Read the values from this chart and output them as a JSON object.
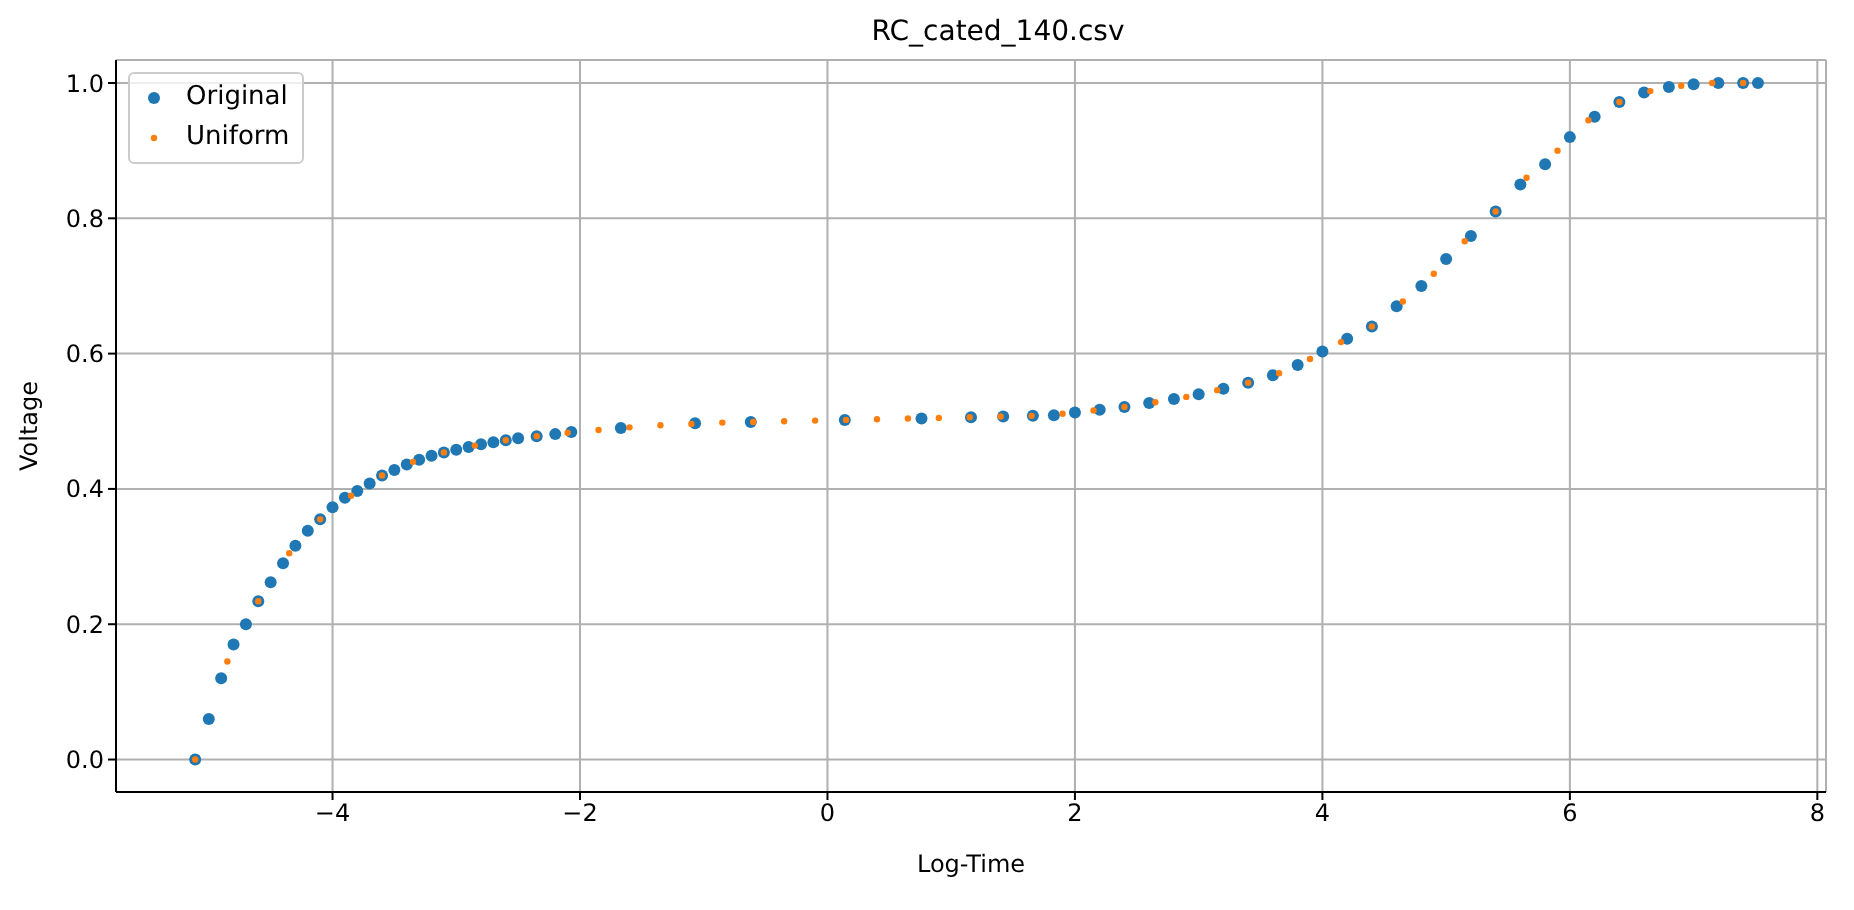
{
  "chart_data": {
    "type": "scatter",
    "title": "RC_cated_140.csv",
    "xlabel": "Log-Time",
    "ylabel": "Voltage",
    "xlim": [
      -5.75,
      8.07
    ],
    "ylim": [
      -0.048,
      1.034
    ],
    "xticks": [
      {
        "value": -4,
        "label": "−4"
      },
      {
        "value": -2,
        "label": "−2"
      },
      0,
      2,
      4,
      6,
      8
    ],
    "yticks": [
      {
        "value": 0,
        "label": "0.0"
      },
      {
        "value": 0.2,
        "label": "0.2"
      },
      {
        "value": 0.4,
        "label": "0.4"
      },
      {
        "value": 0.6,
        "label": "0.6"
      },
      {
        "value": 0.8,
        "label": "0.8"
      },
      {
        "value": 1,
        "label": "1.0"
      }
    ],
    "grid": true,
    "legend": "top left",
    "marker": "circle",
    "series": [
      {
        "name": "Original",
        "color": "#1f77b4",
        "x": [
          -5.11,
          -5.0,
          -4.9,
          -4.8,
          -4.7,
          -4.6,
          -4.5,
          -4.4,
          -4.3,
          -4.2,
          -4.1,
          -4.0,
          -3.9,
          -3.8,
          -3.7,
          -3.6,
          -3.5,
          -3.4,
          -3.3,
          -3.2,
          -3.1,
          -3.0,
          -2.9,
          -2.8,
          -2.7,
          -2.6,
          -2.5,
          -2.35,
          -2.2,
          -2.07,
          -1.67,
          -1.07,
          -0.62,
          0.14,
          0.76,
          1.16,
          1.42,
          1.66,
          1.83,
          2.0,
          2.2,
          2.4,
          2.6,
          2.8,
          3.0,
          3.2,
          3.4,
          3.6,
          3.8,
          4.0,
          4.2,
          4.4,
          4.6,
          4.8,
          5.0,
          5.2,
          5.4,
          5.6,
          5.8,
          6.0,
          6.2,
          6.4,
          6.6,
          6.8,
          7.0,
          7.2,
          7.4,
          7.52
        ],
        "values": [
          0,
          0.06,
          0.12,
          0.17,
          0.2,
          0.234,
          0.262,
          0.29,
          0.316,
          0.338,
          0.355,
          0.373,
          0.387,
          0.397,
          0.408,
          0.42,
          0.428,
          0.436,
          0.443,
          0.449,
          0.454,
          0.458,
          0.462,
          0.466,
          0.469,
          0.472,
          0.475,
          0.478,
          0.481,
          0.484,
          0.49,
          0.497,
          0.499,
          0.502,
          0.504,
          0.506,
          0.507,
          0.508,
          0.509,
          0.513,
          0.517,
          0.521,
          0.527,
          0.533,
          0.54,
          0.548,
          0.557,
          0.568,
          0.583,
          0.603,
          0.622,
          0.64,
          0.67,
          0.7,
          0.74,
          0.774,
          0.81,
          0.85,
          0.88,
          0.92,
          0.95,
          0.972,
          0.986,
          0.994,
          0.998,
          1.0,
          1.0,
          1.0
        ]
      },
      {
        "name": "Uniform",
        "color": "#ff7f0e",
        "x": [
          -5.11,
          -4.85,
          -4.6,
          -4.35,
          -4.1,
          -3.85,
          -3.6,
          -3.35,
          -3.1,
          -2.85,
          -2.6,
          -2.35,
          -2.1,
          -1.85,
          -1.6,
          -1.35,
          -1.1,
          -0.85,
          -0.6,
          -0.35,
          -0.1,
          0.15,
          0.4,
          0.65,
          0.9,
          1.15,
          1.4,
          1.65,
          1.9,
          2.15,
          2.4,
          2.65,
          2.9,
          3.15,
          3.4,
          3.65,
          3.9,
          4.15,
          4.4,
          4.65,
          4.9,
          5.15,
          5.4,
          5.65,
          5.9,
          6.15,
          6.4,
          6.65,
          6.9,
          7.15,
          7.4
        ],
        "values": [
          0,
          0.145,
          0.234,
          0.305,
          0.355,
          0.39,
          0.42,
          0.44,
          0.454,
          0.464,
          0.472,
          0.478,
          0.483,
          0.487,
          0.491,
          0.494,
          0.496,
          0.498,
          0.499,
          0.5,
          0.501,
          0.502,
          0.503,
          0.504,
          0.505,
          0.506,
          0.507,
          0.508,
          0.511,
          0.516,
          0.521,
          0.528,
          0.536,
          0.546,
          0.557,
          0.571,
          0.592,
          0.617,
          0.64,
          0.677,
          0.718,
          0.766,
          0.81,
          0.86,
          0.9,
          0.945,
          0.972,
          0.988,
          0.996,
          1.0,
          1.0
        ]
      }
    ]
  }
}
